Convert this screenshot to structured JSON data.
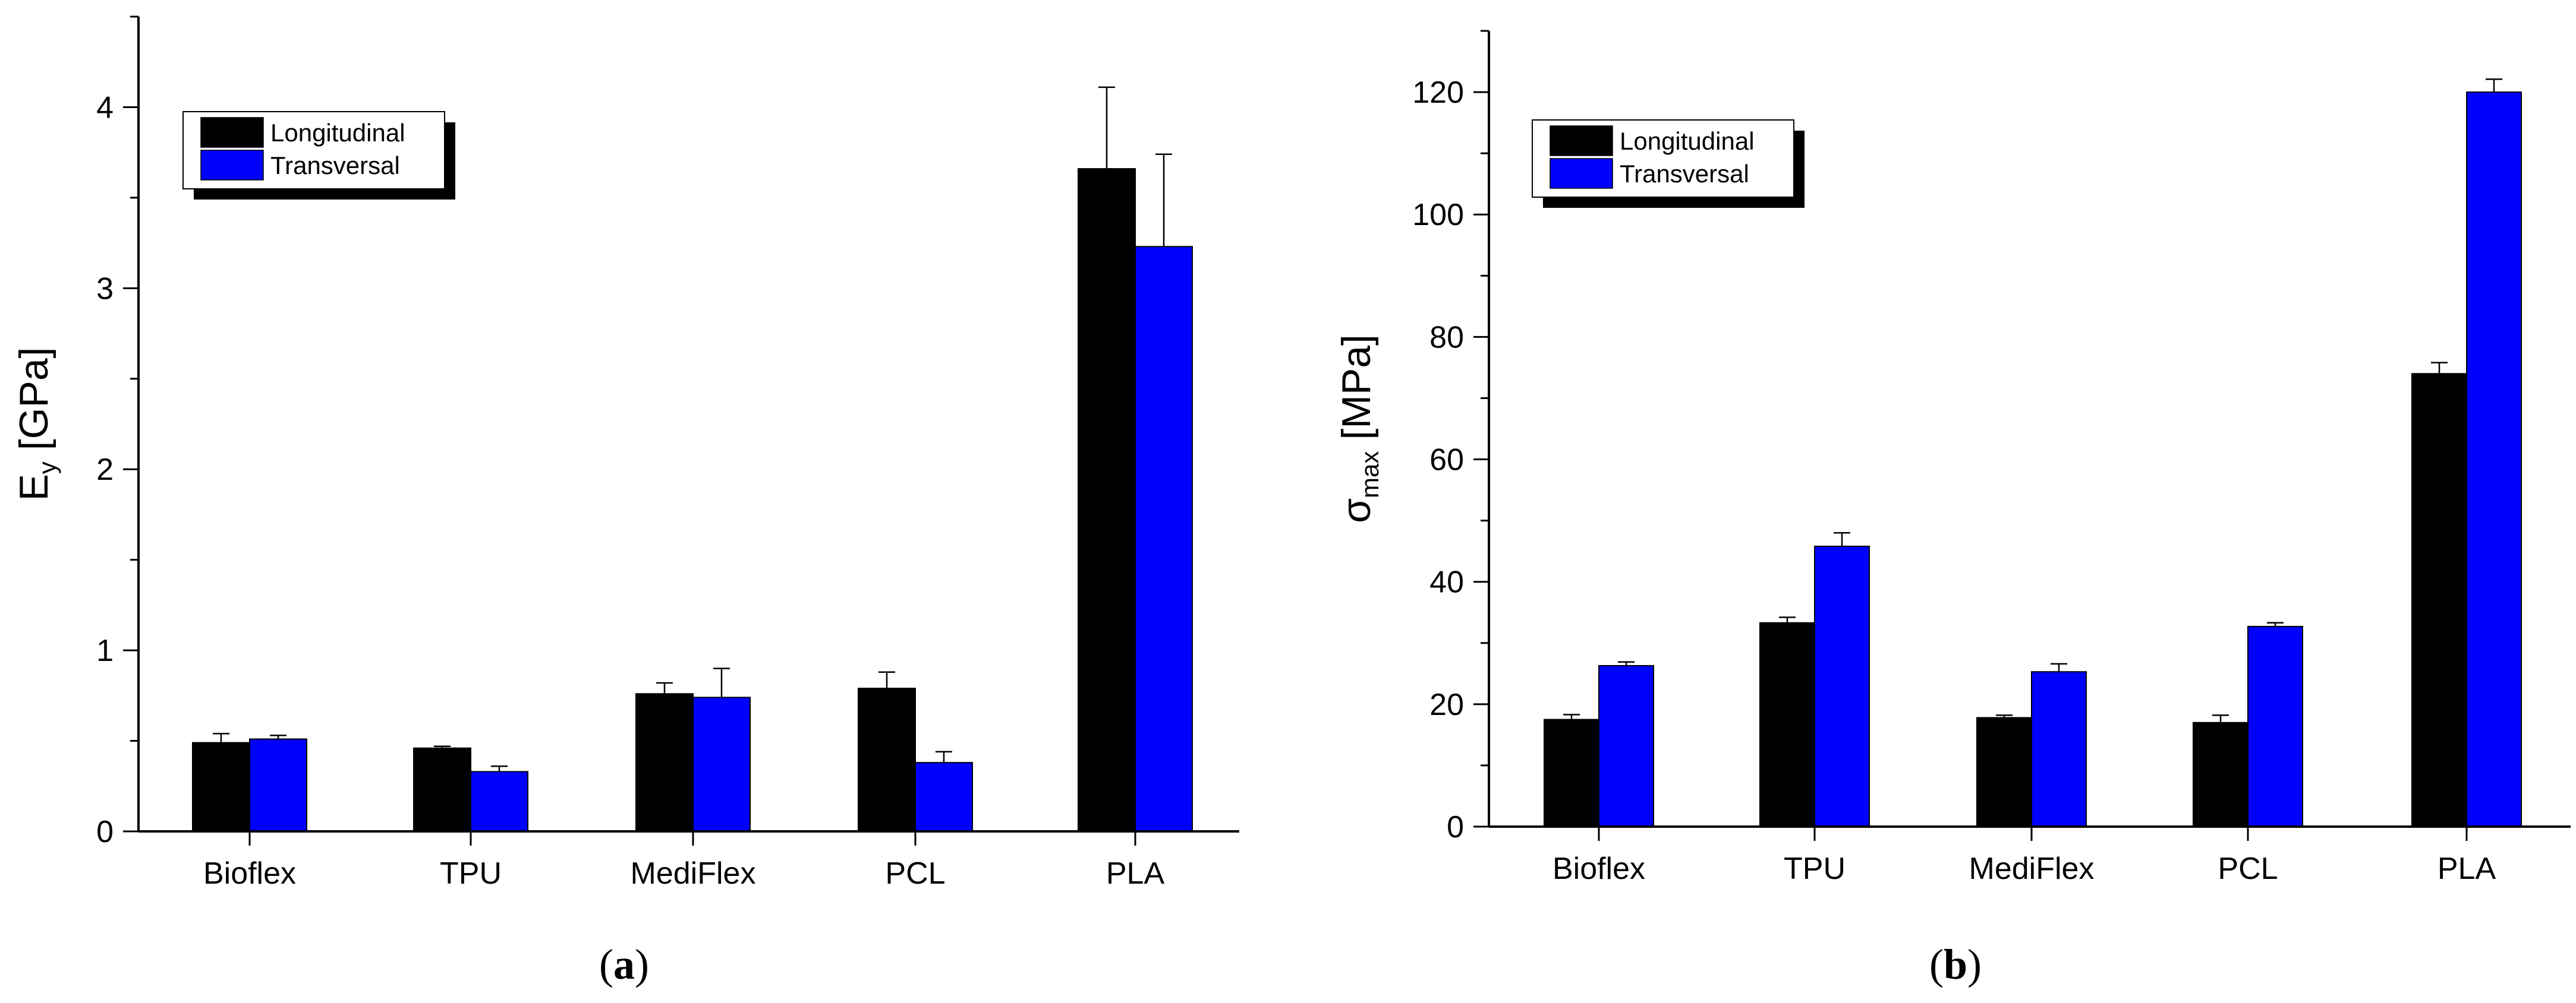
{
  "chart_data": [
    {
      "type": "bar",
      "panel_label": "a",
      "categories": [
        "Bioflex",
        "TPU",
        "MediFlex",
        "PCL",
        "PLA"
      ],
      "ylabel": {
        "main": "E",
        "sub": "y",
        "unit": " [GPa]"
      },
      "ylim": [
        0,
        4.5
      ],
      "yticks": [
        0,
        1,
        2,
        3,
        4
      ],
      "yticklabels": [
        "0",
        "1",
        "2",
        "3",
        "4"
      ],
      "series": [
        {
          "name": "Longitudinal",
          "color": "#000000",
          "values": [
            0.49,
            0.46,
            0.76,
            0.79,
            3.66
          ],
          "errors": [
            0.05,
            0.01,
            0.06,
            0.09,
            0.45
          ]
        },
        {
          "name": "Transversal",
          "color": "#0000ff",
          "values": [
            0.51,
            0.33,
            0.74,
            0.38,
            3.23
          ],
          "errors": [
            0.02,
            0.03,
            0.16,
            0.06,
            0.51
          ]
        }
      ],
      "legend": "top-left"
    },
    {
      "type": "bar",
      "panel_label": "b",
      "categories": [
        "Bioflex",
        "TPU",
        "MediFlex",
        "PCL",
        "PLA"
      ],
      "ylabel": {
        "main": "σ",
        "sub": "max",
        "unit": " [MPa]"
      },
      "ylim": [
        0,
        130
      ],
      "yticks": [
        0,
        20,
        40,
        60,
        80,
        100,
        120
      ],
      "yticklabels": [
        "0",
        "20",
        "40",
        "60",
        "80",
        "100",
        "120"
      ],
      "series": [
        {
          "name": "Longitudinal",
          "color": "#000000",
          "values": [
            17.5,
            33.3,
            17.8,
            17.0,
            74.0
          ],
          "errors": [
            0.8,
            0.9,
            0.4,
            1.2,
            1.8
          ]
        },
        {
          "name": "Transversal",
          "color": "#0000ff",
          "values": [
            26.3,
            45.8,
            25.3,
            32.7,
            120.0
          ],
          "errors": [
            0.6,
            2.2,
            1.3,
            0.6,
            2.1
          ]
        }
      ],
      "legend": "top-left"
    }
  ]
}
